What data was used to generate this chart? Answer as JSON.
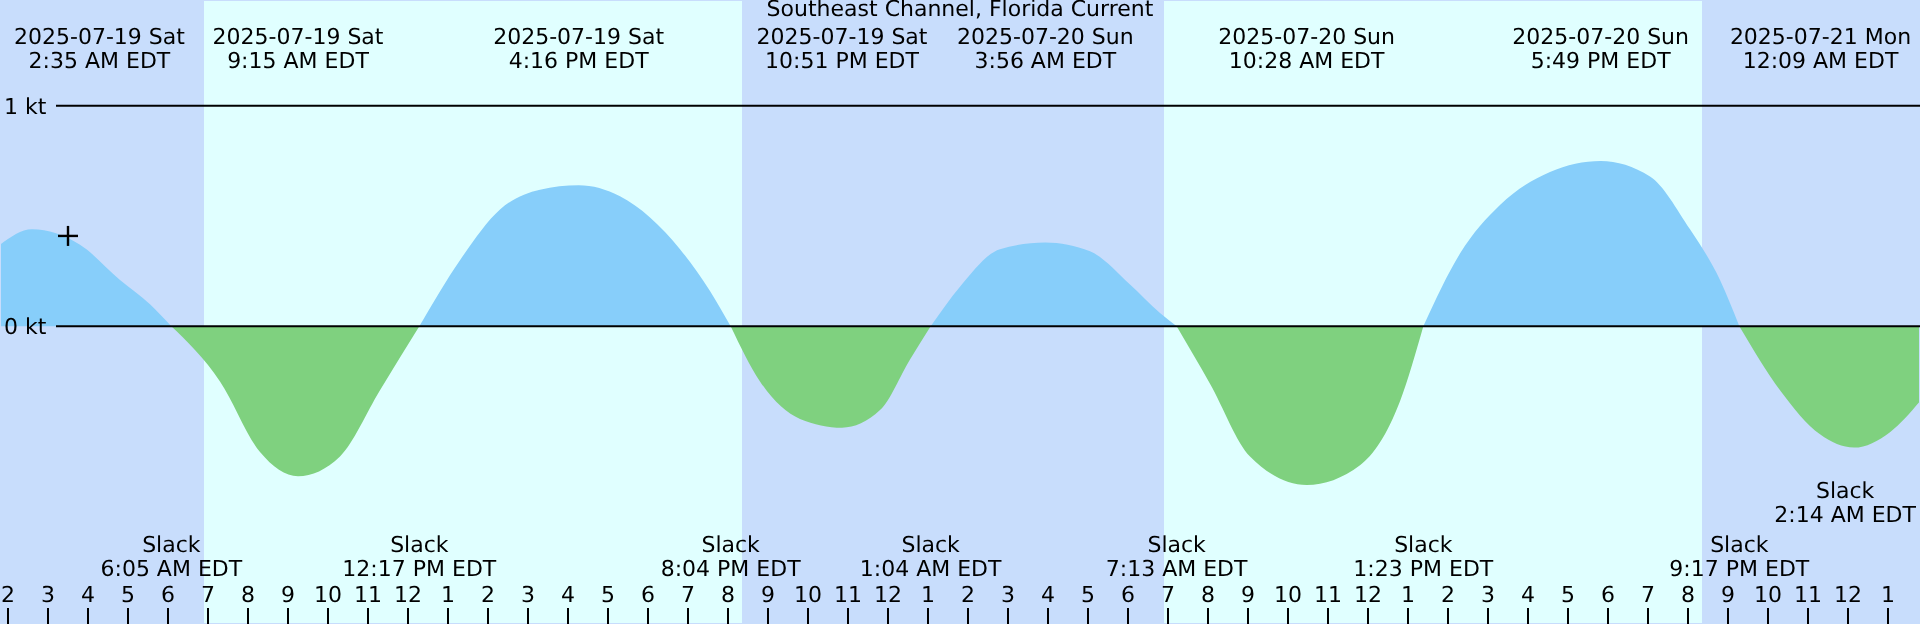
{
  "chart_data": {
    "type": "area",
    "title": "Southeast Channel, Florida Current",
    "xlim": [
      "2025-07-19T01:48",
      "2025-07-21T01:48"
    ],
    "ylim": [
      -1.35,
      1.48
    ],
    "xticks": [
      {
        "value": "2025-07-19T02:00",
        "label": "2"
      },
      {
        "value": "2025-07-19T03:00",
        "label": "3"
      },
      {
        "value": "2025-07-19T04:00",
        "label": "4"
      },
      {
        "value": "2025-07-19T05:00",
        "label": "5"
      },
      {
        "value": "2025-07-19T06:00",
        "label": "6"
      },
      {
        "value": "2025-07-19T07:00",
        "label": "7"
      },
      {
        "value": "2025-07-19T08:00",
        "label": "8"
      },
      {
        "value": "2025-07-19T09:00",
        "label": "9"
      },
      {
        "value": "2025-07-19T10:00",
        "label": "10"
      },
      {
        "value": "2025-07-19T11:00",
        "label": "11"
      },
      {
        "value": "2025-07-19T12:00",
        "label": "12"
      },
      {
        "value": "2025-07-19T13:00",
        "label": "1"
      },
      {
        "value": "2025-07-19T14:00",
        "label": "2"
      },
      {
        "value": "2025-07-19T15:00",
        "label": "3"
      },
      {
        "value": "2025-07-19T16:00",
        "label": "4"
      },
      {
        "value": "2025-07-19T17:00",
        "label": "5"
      },
      {
        "value": "2025-07-19T18:00",
        "label": "6"
      },
      {
        "value": "2025-07-19T19:00",
        "label": "7"
      },
      {
        "value": "2025-07-19T20:00",
        "label": "8"
      },
      {
        "value": "2025-07-19T21:00",
        "label": "9"
      },
      {
        "value": "2025-07-19T22:00",
        "label": "10"
      },
      {
        "value": "2025-07-19T23:00",
        "label": "11"
      },
      {
        "value": "2025-07-20T00:00",
        "label": "12"
      },
      {
        "value": "2025-07-20T01:00",
        "label": "1"
      },
      {
        "value": "2025-07-20T02:00",
        "label": "2"
      },
      {
        "value": "2025-07-20T03:00",
        "label": "3"
      },
      {
        "value": "2025-07-20T04:00",
        "label": "4"
      },
      {
        "value": "2025-07-20T05:00",
        "label": "5"
      },
      {
        "value": "2025-07-20T06:00",
        "label": "6"
      },
      {
        "value": "2025-07-20T07:00",
        "label": "7"
      },
      {
        "value": "2025-07-20T08:00",
        "label": "8"
      },
      {
        "value": "2025-07-20T09:00",
        "label": "9"
      },
      {
        "value": "2025-07-20T10:00",
        "label": "10"
      },
      {
        "value": "2025-07-20T11:00",
        "label": "11"
      },
      {
        "value": "2025-07-20T12:00",
        "label": "12"
      },
      {
        "value": "2025-07-20T13:00",
        "label": "1"
      },
      {
        "value": "2025-07-20T14:00",
        "label": "2"
      },
      {
        "value": "2025-07-20T15:00",
        "label": "3"
      },
      {
        "value": "2025-07-20T16:00",
        "label": "4"
      },
      {
        "value": "2025-07-20T17:00",
        "label": "5"
      },
      {
        "value": "2025-07-20T18:00",
        "label": "6"
      },
      {
        "value": "2025-07-20T19:00",
        "label": "7"
      },
      {
        "value": "2025-07-20T20:00",
        "label": "8"
      },
      {
        "value": "2025-07-20T21:00",
        "label": "9"
      },
      {
        "value": "2025-07-20T22:00",
        "label": "10"
      },
      {
        "value": "2025-07-20T23:00",
        "label": "11"
      },
      {
        "value": "2025-07-21T00:00",
        "label": "12"
      },
      {
        "value": "2025-07-21T01:00",
        "label": "1"
      }
    ],
    "yticks": [
      {
        "value": 0,
        "label": "0 kt"
      },
      {
        "value": 1,
        "label": "1 kt"
      }
    ],
    "grid": "y",
    "series": [
      {
        "color": "#87cefa",
        "x": [
          "2025-07-19T01:48",
          "2025-07-19T02:36",
          "2025-07-19T03:48",
          "2025-07-19T04:48",
          "2025-07-19T05:33",
          "2025-07-19T06:05",
          "2025-07-19T12:17",
          "2025-07-19T13:18",
          "2025-07-19T14:18",
          "2025-07-19T15:18",
          "2025-07-19T16:16",
          "2025-07-19T17:18",
          "2025-07-19T18:48",
          "2025-07-19T19:33",
          "2025-07-19T20:04",
          "2025-07-20T01:04",
          "2025-07-20T01:48",
          "2025-07-20T02:48",
          "2025-07-20T03:56",
          "2025-07-20T05:03",
          "2025-07-20T06:03",
          "2025-07-20T06:48",
          "2025-07-20T07:13",
          "2025-07-20T13:23",
          "2025-07-20T14:18",
          "2025-07-20T15:18",
          "2025-07-20T16:33",
          "2025-07-20T17:49",
          "2025-07-20T19:03",
          "2025-07-20T20:03",
          "2025-07-20T20:48",
          "2025-07-20T21:17"
        ],
        "values": [
          0.37,
          0.44,
          0.37,
          0.21,
          0.1,
          0,
          0,
          0.3,
          0.53,
          0.62,
          0.64,
          0.59,
          0.35,
          0.16,
          0,
          0,
          0.18,
          0.35,
          0.38,
          0.34,
          0.19,
          0.06,
          0,
          0,
          0.33,
          0.55,
          0.7,
          0.75,
          0.68,
          0.44,
          0.21,
          0
        ]
      },
      {
        "color": "#7fd17f",
        "x": [
          "2025-07-19T06:05",
          "2025-07-19T07:18",
          "2025-07-19T08:18",
          "2025-07-19T09:15",
          "2025-07-19T10:18",
          "2025-07-19T11:18",
          "2025-07-19T12:17",
          "2025-07-19T20:04",
          "2025-07-19T20:48",
          "2025-07-19T21:48",
          "2025-07-19T22:51",
          "2025-07-19T23:48",
          "2025-07-20T00:33",
          "2025-07-20T01:04",
          "2025-07-20T07:13",
          "2025-07-20T08:03",
          "2025-07-20T09:03",
          "2025-07-20T10:28",
          "2025-07-20T11:48",
          "2025-07-20T12:48",
          "2025-07-20T13:23",
          "2025-07-20T21:17",
          "2025-07-20T22:18",
          "2025-07-20T23:18",
          "2025-07-21T00:09",
          "2025-07-21T01:03",
          "2025-07-21T01:48"
        ],
        "values": [
          0,
          -0.25,
          -0.57,
          -0.68,
          -0.59,
          -0.29,
          0,
          0,
          -0.25,
          -0.42,
          -0.46,
          -0.38,
          -0.15,
          0,
          0,
          -0.26,
          -0.59,
          -0.72,
          -0.63,
          -0.34,
          0,
          0,
          -0.29,
          -0.49,
          -0.55,
          -0.48,
          -0.34
        ]
      },
      {
        "type": "scatter",
        "color": "#000000",
        "marker": "cross",
        "x": [
          "2025-07-19T03:30"
        ],
        "values": [
          0.41
        ]
      }
    ],
    "bands": [
      {
        "axis": "x",
        "from": "2025-07-19T01:48",
        "to": "2025-07-19T06:54",
        "color": "#c8ddfc"
      },
      {
        "axis": "x",
        "from": "2025-07-19T06:54",
        "to": "2025-07-19T20:21",
        "color": "#e0ffff"
      },
      {
        "axis": "x",
        "from": "2025-07-19T20:21",
        "to": "2025-07-20T06:54",
        "color": "#c8ddfc"
      },
      {
        "axis": "x",
        "from": "2025-07-20T06:54",
        "to": "2025-07-20T20:21",
        "color": "#e0ffff"
      },
      {
        "axis": "x",
        "from": "2025-07-20T20:21",
        "to": "2025-07-21T01:48",
        "color": "#c8ddfc"
      }
    ],
    "annotations": [
      "2025-07-19 Sat\n2:35 AM EDT",
      "2025-07-19 Sat\n9:15 AM EDT",
      "2025-07-19 Sat\n4:16 PM EDT",
      "2025-07-19 Sat\n10:51 PM EDT",
      "2025-07-20 Sun\n3:56 AM EDT",
      "2025-07-20 Sun\n10:28 AM EDT",
      "2025-07-20 Sun\n5:49 PM EDT",
      "2025-07-21 Mon\n12:09 AM EDT",
      "Slack\n6:05 AM EDT",
      "Slack\n12:17 PM EDT",
      "Slack\n8:04 PM EDT",
      "Slack\n1:04 AM EDT",
      "Slack\n7:13 AM EDT",
      "Slack\n1:23 PM EDT",
      "Slack\n9:17 PM EDT",
      "Slack\n2:14 AM EDT"
    ]
  }
}
